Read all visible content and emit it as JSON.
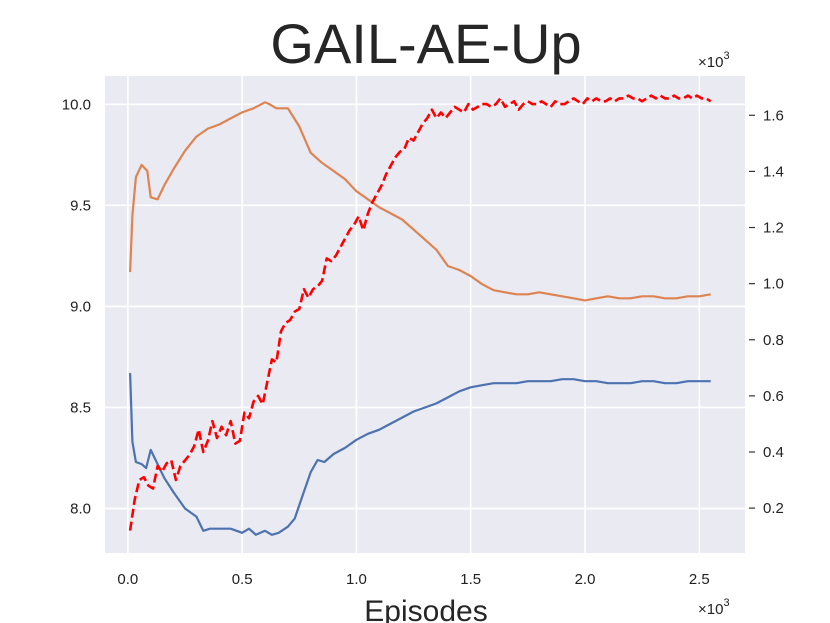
{
  "chart_data": {
    "type": "line",
    "title": "GAIL-AE-Up",
    "xlabel": "Episodes",
    "ylabel": "",
    "y2label": "",
    "x_multiplier_label": "×10",
    "x_multiplier_exp": "3",
    "y2_multiplier_label": "×10",
    "y2_multiplier_exp": "3",
    "xlim": [
      -0.1,
      2.7
    ],
    "ylim": [
      7.78,
      10.14
    ],
    "y2lim": [
      0.04,
      1.74
    ],
    "xticks": [
      0.0,
      0.5,
      1.0,
      1.5,
      2.0,
      2.5
    ],
    "xtick_labels": [
      "0.0",
      "0.5",
      "1.0",
      "1.5",
      "2.0",
      "2.5"
    ],
    "yticks": [
      8.0,
      8.5,
      9.0,
      9.5,
      10.0
    ],
    "ytick_labels": [
      "8.0",
      "8.5",
      "9.0",
      "9.5",
      "10.0"
    ],
    "y2ticks": [
      0.2,
      0.4,
      0.6,
      0.8,
      1.0,
      1.2,
      1.4,
      1.6
    ],
    "y2tick_labels": [
      "0.2",
      "0.4",
      "0.6",
      "0.8",
      "1.0",
      "1.2",
      "1.4",
      "1.6"
    ],
    "grid": true,
    "background": "#eaeaf2",
    "series": [
      {
        "axis": "left",
        "color": "#dd8452",
        "style": "solid",
        "x": [
          0.01,
          0.02,
          0.035,
          0.06,
          0.085,
          0.1,
          0.13,
          0.16,
          0.2,
          0.25,
          0.3,
          0.35,
          0.4,
          0.45,
          0.5,
          0.55,
          0.6,
          0.62,
          0.65,
          0.7,
          0.75,
          0.8,
          0.85,
          0.9,
          0.95,
          1.0,
          1.05,
          1.1,
          1.15,
          1.2,
          1.25,
          1.3,
          1.35,
          1.4,
          1.45,
          1.5,
          1.55,
          1.6,
          1.65,
          1.7,
          1.75,
          1.8,
          1.85,
          1.9,
          1.95,
          2.0,
          2.05,
          2.1,
          2.15,
          2.2,
          2.25,
          2.3,
          2.35,
          2.4,
          2.45,
          2.5,
          2.55
        ],
        "y": [
          9.17,
          9.45,
          9.64,
          9.7,
          9.67,
          9.54,
          9.53,
          9.6,
          9.68,
          9.77,
          9.84,
          9.88,
          9.9,
          9.93,
          9.96,
          9.98,
          10.01,
          10.0,
          9.98,
          9.98,
          9.89,
          9.76,
          9.71,
          9.67,
          9.63,
          9.57,
          9.53,
          9.49,
          9.46,
          9.43,
          9.38,
          9.33,
          9.28,
          9.2,
          9.18,
          9.15,
          9.11,
          9.08,
          9.07,
          9.06,
          9.06,
          9.07,
          9.06,
          9.05,
          9.04,
          9.03,
          9.04,
          9.05,
          9.04,
          9.04,
          9.05,
          9.05,
          9.04,
          9.04,
          9.05,
          9.05,
          9.06
        ]
      },
      {
        "axis": "left",
        "color": "#4c72b0",
        "style": "solid",
        "x": [
          0.01,
          0.02,
          0.035,
          0.06,
          0.08,
          0.1,
          0.13,
          0.16,
          0.2,
          0.25,
          0.3,
          0.33,
          0.36,
          0.4,
          0.45,
          0.5,
          0.53,
          0.56,
          0.6,
          0.63,
          0.66,
          0.7,
          0.73,
          0.76,
          0.8,
          0.83,
          0.86,
          0.9,
          0.95,
          1.0,
          1.05,
          1.1,
          1.15,
          1.2,
          1.25,
          1.3,
          1.35,
          1.4,
          1.45,
          1.5,
          1.55,
          1.6,
          1.65,
          1.7,
          1.75,
          1.8,
          1.85,
          1.9,
          1.95,
          2.0,
          2.05,
          2.1,
          2.15,
          2.2,
          2.25,
          2.3,
          2.35,
          2.4,
          2.45,
          2.5,
          2.55
        ],
        "y": [
          8.67,
          8.33,
          8.23,
          8.22,
          8.2,
          8.29,
          8.22,
          8.15,
          8.08,
          8.0,
          7.96,
          7.89,
          7.9,
          7.9,
          7.9,
          7.88,
          7.9,
          7.87,
          7.89,
          7.87,
          7.88,
          7.91,
          7.95,
          8.05,
          8.18,
          8.24,
          8.23,
          8.27,
          8.3,
          8.34,
          8.37,
          8.39,
          8.42,
          8.45,
          8.48,
          8.5,
          8.52,
          8.55,
          8.58,
          8.6,
          8.61,
          8.62,
          8.62,
          8.62,
          8.63,
          8.63,
          8.63,
          8.64,
          8.64,
          8.63,
          8.63,
          8.62,
          8.62,
          8.62,
          8.63,
          8.63,
          8.62,
          8.62,
          8.63,
          8.63,
          8.63
        ]
      },
      {
        "axis": "right",
        "color": "#ff0000",
        "style": "dashed",
        "x": [
          0.01,
          0.03,
          0.05,
          0.07,
          0.09,
          0.11,
          0.13,
          0.15,
          0.17,
          0.19,
          0.21,
          0.23,
          0.25,
          0.27,
          0.29,
          0.31,
          0.33,
          0.35,
          0.37,
          0.39,
          0.41,
          0.43,
          0.45,
          0.47,
          0.49,
          0.51,
          0.53,
          0.55,
          0.57,
          0.59,
          0.61,
          0.63,
          0.65,
          0.67,
          0.69,
          0.71,
          0.73,
          0.75,
          0.77,
          0.79,
          0.81,
          0.83,
          0.85,
          0.87,
          0.89,
          0.91,
          0.93,
          0.95,
          0.97,
          0.99,
          1.01,
          1.03,
          1.05,
          1.07,
          1.09,
          1.11,
          1.13,
          1.15,
          1.17,
          1.19,
          1.21,
          1.23,
          1.25,
          1.27,
          1.29,
          1.31,
          1.33,
          1.35,
          1.37,
          1.39,
          1.41,
          1.43,
          1.45,
          1.47,
          1.49,
          1.51,
          1.53,
          1.55,
          1.57,
          1.59,
          1.61,
          1.63,
          1.65,
          1.67,
          1.69,
          1.71,
          1.73,
          1.75,
          1.77,
          1.79,
          1.81,
          1.83,
          1.85,
          1.87,
          1.89,
          1.91,
          1.93,
          1.95,
          1.97,
          1.99,
          2.01,
          2.03,
          2.05,
          2.07,
          2.09,
          2.11,
          2.13,
          2.15,
          2.17,
          2.19,
          2.21,
          2.23,
          2.25,
          2.27,
          2.29,
          2.31,
          2.33,
          2.35,
          2.37,
          2.39,
          2.41,
          2.43,
          2.45,
          2.47,
          2.49,
          2.51,
          2.53,
          2.55
        ],
        "y": [
          0.12,
          0.23,
          0.3,
          0.31,
          0.28,
          0.27,
          0.35,
          0.33,
          0.36,
          0.37,
          0.3,
          0.35,
          0.37,
          0.39,
          0.42,
          0.48,
          0.4,
          0.44,
          0.51,
          0.45,
          0.49,
          0.46,
          0.51,
          0.43,
          0.44,
          0.54,
          0.52,
          0.58,
          0.6,
          0.57,
          0.65,
          0.73,
          0.72,
          0.83,
          0.86,
          0.87,
          0.9,
          0.91,
          0.98,
          0.95,
          0.98,
          0.99,
          1.01,
          1.09,
          1.08,
          1.1,
          1.13,
          1.16,
          1.19,
          1.21,
          1.24,
          1.19,
          1.25,
          1.29,
          1.32,
          1.35,
          1.39,
          1.42,
          1.45,
          1.47,
          1.48,
          1.52,
          1.51,
          1.54,
          1.57,
          1.59,
          1.62,
          1.59,
          1.61,
          1.59,
          1.61,
          1.63,
          1.62,
          1.61,
          1.64,
          1.62,
          1.63,
          1.64,
          1.64,
          1.63,
          1.64,
          1.66,
          1.63,
          1.64,
          1.65,
          1.62,
          1.64,
          1.65,
          1.64,
          1.64,
          1.65,
          1.64,
          1.63,
          1.65,
          1.64,
          1.64,
          1.65,
          1.66,
          1.65,
          1.64,
          1.66,
          1.65,
          1.66,
          1.65,
          1.65,
          1.66,
          1.65,
          1.66,
          1.66,
          1.67,
          1.66,
          1.66,
          1.65,
          1.66,
          1.67,
          1.66,
          1.67,
          1.66,
          1.66,
          1.67,
          1.66,
          1.66,
          1.67,
          1.66,
          1.67,
          1.66,
          1.66,
          1.65
        ]
      }
    ]
  }
}
